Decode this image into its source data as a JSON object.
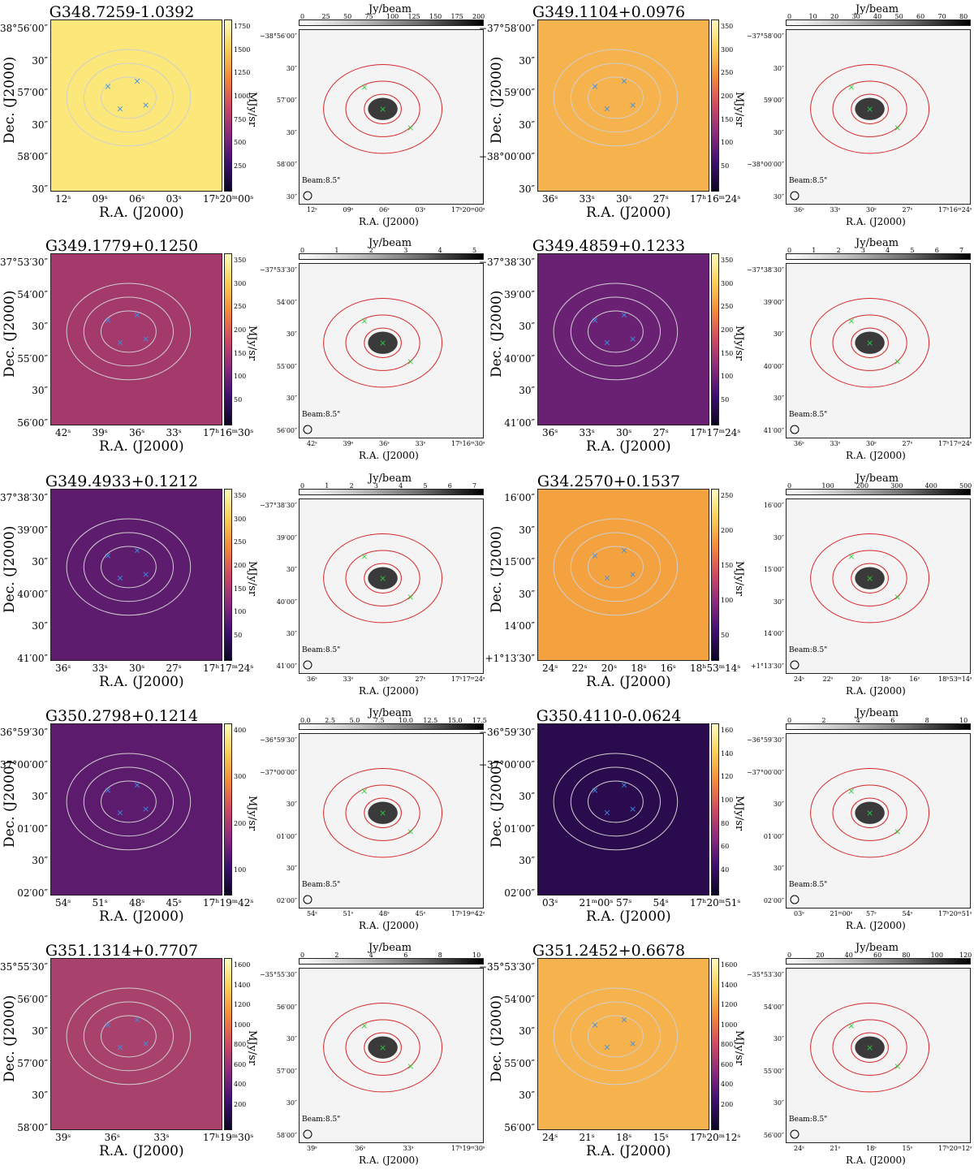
{
  "figure": {
    "colormaps": {
      "infrared": "inferno-like (dark purple to yellow)",
      "mm": "grey (white to black)"
    },
    "colors": {
      "ir_contour": "#cfcfcf",
      "mm_contour": "#d62728",
      "marker_ir": "#3b8fe8",
      "marker_mm": "#2ecc40"
    },
    "ra_label": "R.A. (J2000)",
    "dec_label": "Dec. (J2000)",
    "ir_unit": "MJy/sr",
    "mm_unit": "Jy/beam",
    "beam_label": "Beam:8.5\""
  },
  "panels": [
    {
      "title": "G348.7259-1.0392",
      "bg": "#fbe77a",
      "dec_ticks": [
        "−38°56′00″",
        "30″",
        "57′00″",
        "30″",
        "58′00″",
        "30″"
      ],
      "ra_ticks": [
        "12ˢ",
        "09ˢ",
        "06ˢ",
        "03ˢ",
        "17ʰ20ᵐ00ˢ"
      ],
      "ir_cbar_ticks": [
        "1750",
        "1500",
        "1250",
        "1000",
        "750",
        "500",
        "250"
      ],
      "mm_cbar_ticks": [
        "0",
        "25",
        "50",
        "75",
        "100",
        "125",
        "150",
        "175",
        "200"
      ]
    },
    {
      "title": "G349.1104+0.0976",
      "bg": "#f6b24d",
      "dec_ticks": [
        "−37°58′00″",
        "30″",
        "59′00″",
        "30″",
        "−38°00′00″",
        "30″"
      ],
      "ra_ticks": [
        "36ˢ",
        "33ˢ",
        "30ˢ",
        "27ˢ",
        "17ʰ16ᵐ24ˢ"
      ],
      "ir_cbar_ticks": [
        "350",
        "300",
        "250",
        "200",
        "150",
        "100",
        "50"
      ],
      "mm_cbar_ticks": [
        "0",
        "10",
        "20",
        "30",
        "40",
        "50",
        "60",
        "70",
        "80"
      ]
    },
    {
      "title": "G349.1779+0.1250",
      "bg": "#a43a6c",
      "dec_ticks": [
        "−37°53′30″",
        "54′00″",
        "30″",
        "55′00″",
        "30″",
        "56′00″"
      ],
      "ra_ticks": [
        "42ˢ",
        "39ˢ",
        "36ˢ",
        "33ˢ",
        "17ʰ16ᵐ30ˢ"
      ],
      "ir_cbar_ticks": [
        "350",
        "300",
        "250",
        "200",
        "150",
        "100",
        "50"
      ],
      "mm_cbar_ticks": [
        "0",
        "1",
        "2",
        "3",
        "4",
        "5"
      ]
    },
    {
      "title": "G349.4859+0.1233",
      "bg": "#6a2174",
      "dec_ticks": [
        "−37°38′30″",
        "39′00″",
        "30″",
        "40′00″",
        "30″",
        "41′00″"
      ],
      "ra_ticks": [
        "36ˢ",
        "33ˢ",
        "30ˢ",
        "27ˢ",
        "17ʰ17ᵐ24ˢ"
      ],
      "ir_cbar_ticks": [
        "350",
        "300",
        "250",
        "200",
        "150",
        "100",
        "50"
      ],
      "mm_cbar_ticks": [
        "0",
        "1",
        "2",
        "3",
        "4",
        "5",
        "6",
        "7"
      ]
    },
    {
      "title": "G349.4933+0.1212",
      "bg": "#5e1c6e",
      "dec_ticks": [
        "−37°38′30″",
        "39′00″",
        "30″",
        "40′00″",
        "30″",
        "41′00″"
      ],
      "ra_ticks": [
        "36ˢ",
        "33ˢ",
        "30ˢ",
        "27ˢ",
        "17ʰ17ᵐ24ˢ"
      ],
      "ir_cbar_ticks": [
        "350",
        "300",
        "250",
        "200",
        "150",
        "100",
        "50"
      ],
      "mm_cbar_ticks": [
        "0",
        "1",
        "2",
        "3",
        "4",
        "5",
        "6",
        "7"
      ]
    },
    {
      "title": "G34.2570+0.1537",
      "bg": "#f4a23f",
      "dec_ticks": [
        "16′00″",
        "30″",
        "15′00″",
        "30″",
        "14′00″",
        "+1°13′30″"
      ],
      "ra_ticks": [
        "24ˢ",
        "22ˢ",
        "20ˢ",
        "18ˢ",
        "16ˢ",
        "18ʰ53ᵐ14ˢ"
      ],
      "ir_cbar_ticks": [
        "250",
        "200",
        "150",
        "100",
        "50"
      ],
      "mm_cbar_ticks": [
        "0",
        "100",
        "200",
        "300",
        "400",
        "500"
      ]
    },
    {
      "title": "G350.2798+0.1214",
      "bg": "#5c1b6d",
      "dec_ticks": [
        "−36°59′30″",
        "−37°00′00″",
        "30″",
        "01′00″",
        "30″",
        "02′00″"
      ],
      "ra_ticks": [
        "54ˢ",
        "51ˢ",
        "48ˢ",
        "45ˢ",
        "17ʰ19ᵐ42ˢ"
      ],
      "ir_cbar_ticks": [
        "400",
        "300",
        "200",
        "100"
      ],
      "mm_cbar_ticks": [
        "0.0",
        "2.5",
        "5.0",
        "7.5",
        "10.0",
        "12.5",
        "15.0",
        "17.5"
      ]
    },
    {
      "title": "G350.4110-0.0624",
      "bg": "#2a0b4e",
      "dec_ticks": [
        "−36°59′30″",
        "−37°00′00″",
        "30″",
        "01′00″",
        "30″",
        "02′00″"
      ],
      "ra_ticks": [
        "03ˢ",
        "21ᵐ00ˢ",
        "57ˢ",
        "54ˢ",
        "17ʰ20ᵐ51ˢ"
      ],
      "ir_cbar_ticks": [
        "160",
        "140",
        "120",
        "100",
        "80",
        "60",
        "40"
      ],
      "mm_cbar_ticks": [
        "0",
        "2",
        "4",
        "6",
        "8",
        "10"
      ]
    },
    {
      "title": "G351.1314+0.7707",
      "bg": "#a8416b",
      "dec_ticks": [
        "−35°55′30″",
        "56′00″",
        "30″",
        "57′00″",
        "30″",
        "58′00″"
      ],
      "ra_ticks": [
        "39ˢ",
        "36ˢ",
        "33ˢ",
        "17ʰ19ᵐ30ˢ"
      ],
      "ir_cbar_ticks": [
        "1600",
        "1400",
        "1200",
        "1000",
        "800",
        "600",
        "400",
        "200"
      ],
      "mm_cbar_ticks": [
        "0",
        "2",
        "4",
        "6",
        "8",
        "10"
      ]
    },
    {
      "title": "G351.2452+0.6678",
      "bg": "#f6b24d",
      "dec_ticks": [
        "−35°53′30″",
        "54′00″",
        "30″",
        "55′00″",
        "30″",
        "56′00″"
      ],
      "ra_ticks": [
        "24ˢ",
        "21ˢ",
        "18ˢ",
        "15ˢ",
        "17ʰ20ᵐ12ˢ"
      ],
      "ir_cbar_ticks": [
        "1600",
        "1400",
        "1200",
        "1000",
        "800",
        "600",
        "400",
        "200"
      ],
      "mm_cbar_ticks": [
        "0",
        "20",
        "40",
        "60",
        "80",
        "100",
        "120"
      ]
    }
  ]
}
